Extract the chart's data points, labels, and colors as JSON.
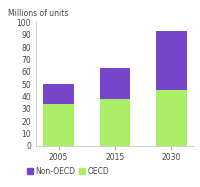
{
  "years": [
    "2005",
    "2015",
    "2030"
  ],
  "oecd": [
    34,
    38,
    45
  ],
  "non_oecd": [
    16,
    25,
    48
  ],
  "oecd_color": "#aaee66",
  "non_oecd_color": "#7744cc",
  "ylabel": "Millions of units",
  "ylim": [
    0,
    100
  ],
  "yticks": [
    0,
    10,
    20,
    30,
    40,
    50,
    60,
    70,
    80,
    90,
    100
  ],
  "bar_width": 0.55,
  "legend_oecd": "OECD",
  "legend_non_oecd": "Non-OECD",
  "background_color": "#ffffff",
  "ylabel_fontsize": 5.5,
  "tick_fontsize": 5.5,
  "legend_fontsize": 5.5
}
